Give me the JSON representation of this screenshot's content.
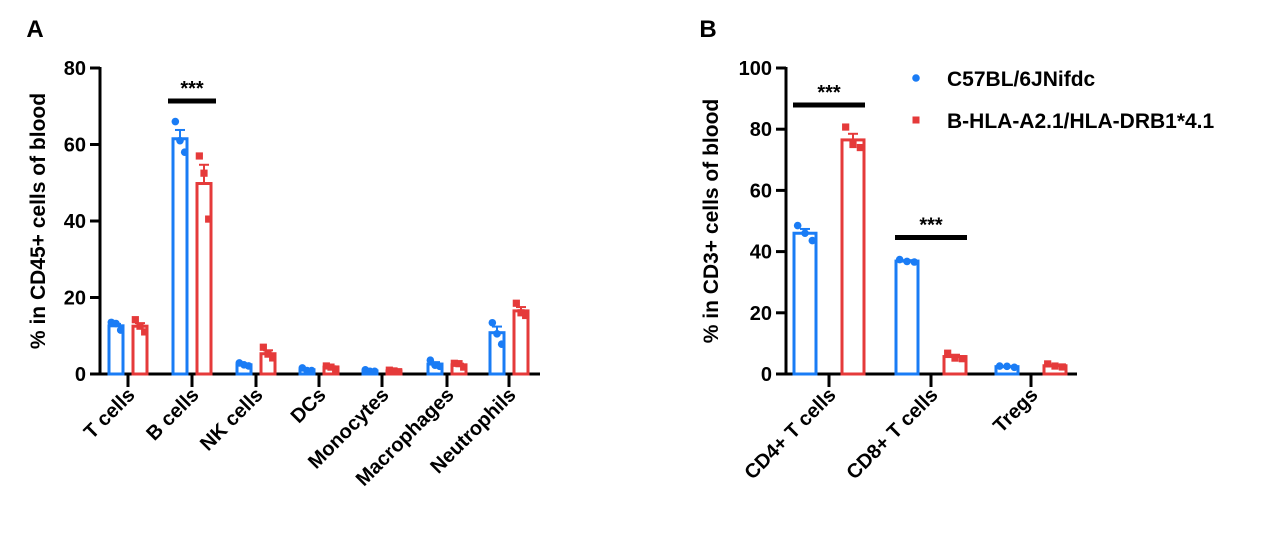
{
  "colors": {
    "series1": "#1a7cf5",
    "series2": "#e53a3a",
    "axis": "#000000"
  },
  "legend": {
    "placement": "top-right",
    "entries": [
      "C57BL/6JNifdc",
      "B-HLA-A2.1/HLA-DRB1*4.1"
    ]
  },
  "chart_data": [
    {
      "type": "bar",
      "panel_label": "A",
      "ylabel": "% in CD45+ cells of blood",
      "ylim": [
        0,
        80
      ],
      "yticks": [
        0,
        20,
        40,
        60,
        80
      ],
      "grid": false,
      "categories": [
        "T cells",
        "B cells",
        "NK cells",
        "DCs",
        "Monocytes",
        "Macrophages",
        "Neutrophils"
      ],
      "series": [
        {
          "name": "C57BL/6JNifdc",
          "values": [
            12.6,
            61.5,
            2.4,
            1.1,
            0.8,
            2.6,
            10.8
          ],
          "sem": [
            0.5,
            2.3,
            0.2,
            0.2,
            0.1,
            0.5,
            1.6
          ],
          "points": [
            [
              13.5,
              13.2,
              11.5
            ],
            [
              66,
              61,
              58
            ],
            [
              2.9,
              2.4,
              2.1
            ],
            [
              1.6,
              0.9,
              0.9
            ],
            [
              1.1,
              0.7,
              0.7
            ],
            [
              3.6,
              2.3,
              2.0
            ],
            [
              13.4,
              10.5,
              7.8
            ]
          ]
        },
        {
          "name": "B-HLA-A2.1/HLA-DRB1*4.1",
          "values": [
            12.5,
            49.8,
            5.3,
            1.8,
            0.8,
            2.4,
            16.5
          ],
          "sem": [
            0.8,
            4.9,
            0.9,
            0.2,
            0.1,
            0.3,
            1.0
          ],
          "points": [
            [
              14.2,
              12.5,
              11.0
            ],
            [
              57,
              52.5,
              40.5
            ],
            [
              7.0,
              5.2,
              4.2
            ],
            [
              2.1,
              1.8,
              1.3
            ],
            [
              1.0,
              0.8,
              0.6
            ],
            [
              2.8,
              2.7,
              1.8
            ],
            [
              18.5,
              16.0,
              15.3
            ]
          ]
        }
      ],
      "annotations": [
        {
          "category": "B cells",
          "text": "***"
        }
      ]
    },
    {
      "type": "bar",
      "panel_label": "B",
      "ylabel": "% in CD3+ cells of blood",
      "ylim": [
        0,
        100
      ],
      "yticks": [
        0,
        20,
        40,
        60,
        80,
        100
      ],
      "grid": false,
      "categories": [
        "CD4+ T cells",
        "CD8+ T cells",
        "Tregs"
      ],
      "series": [
        {
          "name": "C57BL/6JNifdc",
          "values": [
            46.0,
            36.9,
            2.4
          ],
          "sem": [
            1.4,
            0.3,
            0.1
          ],
          "points": [
            [
              48.5,
              46.0,
              43.6
            ],
            [
              37.4,
              36.8,
              36.6
            ],
            [
              2.6,
              2.5,
              2.2
            ]
          ]
        },
        {
          "name": "B-HLA-A2.1/HLA-DRB1*4.1",
          "values": [
            76.5,
            5.7,
            2.7
          ],
          "sem": [
            2.0,
            0.6,
            0.3
          ],
          "points": [
            [
              80.7,
              75.0,
              74.0
            ],
            [
              6.8,
              5.2,
              5.0
            ],
            [
              3.3,
              2.6,
              2.3
            ]
          ]
        }
      ],
      "annotations": [
        {
          "category": "CD4+ T cells",
          "text": "***"
        },
        {
          "category": "CD8+ T cells",
          "text": "***"
        }
      ]
    }
  ]
}
